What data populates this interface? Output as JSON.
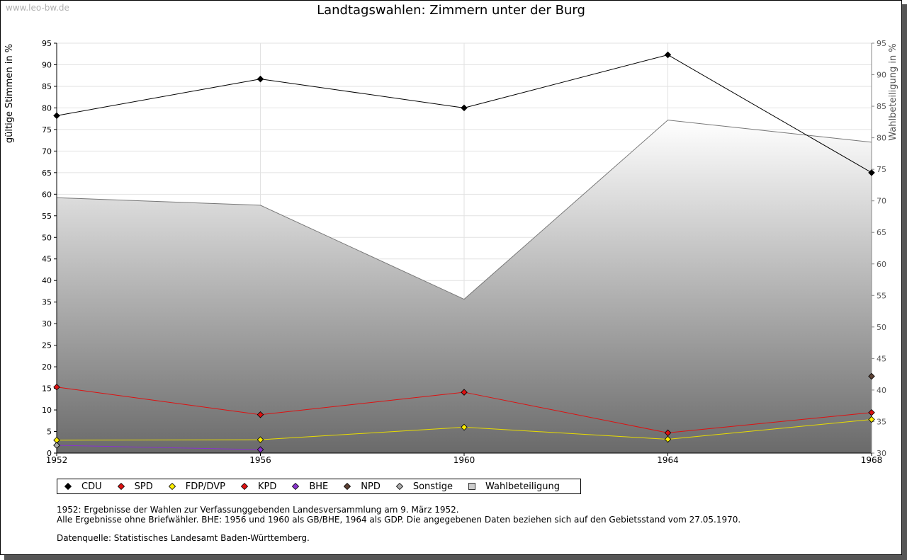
{
  "watermark": "www.leo-bw.de",
  "chart_data": {
    "type": "line",
    "title": "Landtagswahlen: Zimmern unter der Burg",
    "ylabel": "gültige Stimmen in %",
    "y2label": "Wahlbeteiligung in %",
    "ylim": [
      0,
      95
    ],
    "y2lim": [
      30,
      95
    ],
    "yticks": [
      "0",
      "5",
      "10",
      "15",
      "20",
      "25",
      "30",
      "35",
      "40",
      "45",
      "50",
      "55",
      "60",
      "65",
      "70",
      "75",
      "80",
      "85",
      "90",
      "95"
    ],
    "y2ticks": [
      "30",
      "35",
      "40",
      "45",
      "50",
      "55",
      "60",
      "65",
      "70",
      "75",
      "80",
      "85",
      "90",
      "95"
    ],
    "categories": [
      "1952",
      "1956",
      "1960",
      "1964",
      "1968"
    ],
    "turnout": {
      "name": "Wahlbeteiligung",
      "values": [
        70.5,
        69.3,
        54.4,
        82.8,
        79.3
      ]
    },
    "series": [
      {
        "name": "CDU",
        "color": "#000000",
        "values": [
          78.2,
          86.7,
          80.0,
          92.3,
          65.0
        ]
      },
      {
        "name": "SPD",
        "color": "#dd1111",
        "values": [
          15.3,
          8.9,
          14.1,
          4.7,
          9.4
        ]
      },
      {
        "name": "FDP/DVP",
        "color": "#ffee00",
        "values": [
          3.0,
          3.1,
          6.0,
          3.2,
          7.8
        ]
      },
      {
        "name": "KPD",
        "color": "#dd1111",
        "values": [
          null,
          null,
          null,
          null,
          null
        ]
      },
      {
        "name": "BHE",
        "color": "#8833cc",
        "values": [
          1.8,
          0.8,
          null,
          null,
          null
        ]
      },
      {
        "name": "NPD",
        "color": "#5c4033",
        "values": [
          null,
          null,
          null,
          null,
          17.8
        ]
      },
      {
        "name": "Sonstige",
        "color": "#aaaaaa",
        "values": [
          1.8,
          null,
          null,
          null,
          null
        ]
      }
    ],
    "legend": {
      "position": "bottom",
      "entries": [
        {
          "name": "CDU",
          "color": "#000000"
        },
        {
          "name": "SPD",
          "color": "#dd1111"
        },
        {
          "name": "FDP/DVP",
          "color": "#ffee00"
        },
        {
          "name": "KPD",
          "color": "#dd1111"
        },
        {
          "name": "BHE",
          "color": "#8833cc"
        },
        {
          "name": "NPD",
          "color": "#5c4033"
        },
        {
          "name": "Sonstige",
          "color": "#aaaaaa"
        },
        {
          "name": "Wahlbeteiligung",
          "color": "#cccccc"
        }
      ]
    }
  },
  "notes": {
    "line1": "1952: Ergebnisse der Wahlen zur Verfassunggebenden Landesversammlung am 9. März 1952.",
    "line2": "Alle Ergebnisse ohne Briefwähler. BHE: 1956 und 1960 als GB/BHE, 1964 als GDP. Die angegebenen Daten beziehen sich auf den Gebietsstand vom 27.05.1970.",
    "source": "Datenquelle: Statistisches Landesamt Baden-Württemberg."
  }
}
